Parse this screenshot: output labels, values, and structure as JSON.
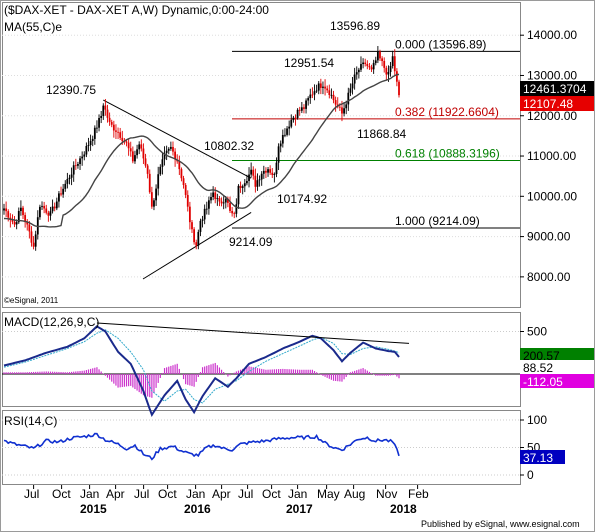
{
  "chart_data": [
    {
      "type": "candlestick",
      "title": "($DAX-XET - DAX-XET A,W) Dynamic,0:00-24:00",
      "subtitle": "MA(55,C)e",
      "watermark": "©eSignal, 2011",
      "ylim": [
        7500,
        14700
      ],
      "yticks": [
        "8000.00",
        "9000.00",
        "10000.00",
        "11000.00",
        "12000.00",
        "13000.00",
        "14000.00"
      ],
      "price_tags": [
        {
          "label": "12461.3704",
          "value": 12461,
          "color": "#000000",
          "text_color": "#ffffff"
        },
        {
          "label": "12107.48",
          "value": 12107,
          "color": "#e60000",
          "text_color": "#ffffff"
        }
      ],
      "fibonacci": [
        {
          "label": "0.000 (13596.89)",
          "value": 13596.89,
          "color": "#000000"
        },
        {
          "label": "0.382 (11922.6604)",
          "value": 11922.66,
          "color": "#c00000"
        },
        {
          "label": "0.618 (10888.3196)",
          "value": 10888.32,
          "color": "#008000"
        },
        {
          "label": "1.000 (9214.09)",
          "value": 9214.09,
          "color": "#000000"
        }
      ],
      "annotations": [
        {
          "text": "12390.75",
          "value": 12390.75
        },
        {
          "text": "10802.32",
          "value": 10802.32
        },
        {
          "text": "10174.92",
          "value": 10174.92
        },
        {
          "text": "9214.09",
          "value": 9214.09
        },
        {
          "text": "12951.54",
          "value": 12951.54
        },
        {
          "text": "13596.89",
          "value": 13596.89
        },
        {
          "text": "11868.84",
          "value": 11868.84
        }
      ],
      "series": [
        {
          "key": "close",
          "approx": [
            [
              0,
              9700
            ],
            [
              5,
              9300
            ],
            [
              8,
              9700
            ],
            [
              12,
              9100
            ],
            [
              14,
              8750
            ],
            [
              17,
              9800
            ],
            [
              22,
              9550
            ],
            [
              27,
              10100
            ],
            [
              32,
              10600
            ],
            [
              38,
              11100
            ],
            [
              42,
              11500
            ],
            [
              46,
              12000
            ],
            [
              47,
              12300
            ],
            [
              50,
              11800
            ],
            [
              54,
              11600
            ],
            [
              58,
              11300
            ],
            [
              61,
              10900
            ],
            [
              64,
              11300
            ],
            [
              68,
              10600
            ],
            [
              70,
              9700
            ],
            [
              73,
              10500
            ],
            [
              76,
              11000
            ],
            [
              79,
              11200
            ],
            [
              82,
              10900
            ],
            [
              85,
              10300
            ],
            [
              87,
              9700
            ],
            [
              89,
              9100
            ],
            [
              91,
              8800
            ],
            [
              93,
              9400
            ],
            [
              96,
              9700
            ],
            [
              99,
              10100
            ],
            [
              102,
              9800
            ],
            [
              105,
              10000
            ],
            [
              107,
              9600
            ],
            [
              109,
              9500
            ],
            [
              111,
              10200
            ],
            [
              114,
              10400
            ],
            [
              117,
              10600
            ],
            [
              119,
              10300
            ],
            [
              122,
              10600
            ],
            [
              125,
              10700
            ],
            [
              128,
              10500
            ],
            [
              130,
              11300
            ],
            [
              133,
              11600
            ],
            [
              136,
              11900
            ],
            [
              139,
              12100
            ],
            [
              142,
              12200
            ],
            [
              145,
              12500
            ],
            [
              148,
              12700
            ],
            [
              151,
              12800
            ],
            [
              154,
              12600
            ],
            [
              157,
              12300
            ],
            [
              160,
              12050
            ],
            [
              163,
              12500
            ],
            [
              166,
              12950
            ],
            [
              168,
              13150
            ],
            [
              171,
              13300
            ],
            [
              174,
              13100
            ],
            [
              177,
              13500
            ],
            [
              180,
              13200
            ],
            [
              182,
              13000
            ],
            [
              184,
              13450
            ],
            [
              186,
              12800
            ],
            [
              187,
              12461
            ]
          ]
        }
      ]
    },
    {
      "type": "line",
      "title": "MACD(12,26,9,C)",
      "yticks": [
        "0",
        "500"
      ],
      "value_tags": [
        {
          "label": "200.57",
          "color": "#008000",
          "text_color": "#000000"
        },
        {
          "label": "88.52",
          "color": "#ffffff",
          "text_color": "#000000"
        },
        {
          "label": "-112.05",
          "color": "#e000e0",
          "text_color": "#ffffff"
        }
      ],
      "series": [
        {
          "key": "macd",
          "approx": [
            [
              0,
              100
            ],
            [
              10,
              160
            ],
            [
              20,
              250
            ],
            [
              30,
              320
            ],
            [
              38,
              420
            ],
            [
              44,
              560
            ],
            [
              48,
              500
            ],
            [
              54,
              260
            ],
            [
              60,
              120
            ],
            [
              66,
              -200
            ],
            [
              70,
              -480
            ],
            [
              76,
              -250
            ],
            [
              82,
              -80
            ],
            [
              86,
              -300
            ],
            [
              90,
              -450
            ],
            [
              94,
              -260
            ],
            [
              100,
              -50
            ],
            [
              106,
              -150
            ],
            [
              110,
              -50
            ],
            [
              116,
              120
            ],
            [
              124,
              200
            ],
            [
              132,
              300
            ],
            [
              140,
              380
            ],
            [
              146,
              450
            ],
            [
              150,
              420
            ],
            [
              156,
              280
            ],
            [
              160,
              150
            ],
            [
              164,
              250
            ],
            [
              170,
              370
            ],
            [
              176,
              300
            ],
            [
              182,
              270
            ],
            [
              185,
              260
            ],
            [
              187,
              200
            ]
          ]
        },
        {
          "key": "signal",
          "approx": [
            [
              0,
              80
            ],
            [
              10,
              140
            ],
            [
              20,
              220
            ],
            [
              30,
              300
            ],
            [
              38,
              380
            ],
            [
              44,
              480
            ],
            [
              48,
              520
            ],
            [
              54,
              420
            ],
            [
              60,
              260
            ],
            [
              66,
              50
            ],
            [
              70,
              -200
            ],
            [
              76,
              -320
            ],
            [
              82,
              -200
            ],
            [
              86,
              -180
            ],
            [
              90,
              -300
            ],
            [
              94,
              -340
            ],
            [
              100,
              -180
            ],
            [
              106,
              -120
            ],
            [
              110,
              -80
            ],
            [
              116,
              30
            ],
            [
              124,
              150
            ],
            [
              132,
              240
            ],
            [
              140,
              330
            ],
            [
              146,
              400
            ],
            [
              150,
              430
            ],
            [
              156,
              360
            ],
            [
              160,
              240
            ],
            [
              164,
              230
            ],
            [
              170,
              300
            ],
            [
              176,
              320
            ],
            [
              182,
              290
            ],
            [
              185,
              270
            ],
            [
              187,
              250
            ]
          ]
        }
      ]
    },
    {
      "type": "line",
      "title": "RSI(14,C)",
      "yticks": [
        "0",
        "50",
        "100"
      ],
      "value_tag": {
        "label": "37.13",
        "color": "#0000c0",
        "text_color": "#ffffff"
      },
      "series": [
        {
          "key": "rsi",
          "approx": [
            [
              0,
              62
            ],
            [
              6,
              55
            ],
            [
              10,
              52
            ],
            [
              14,
              48
            ],
            [
              20,
              62
            ],
            [
              26,
              60
            ],
            [
              32,
              67
            ],
            [
              38,
              70
            ],
            [
              44,
              74
            ],
            [
              48,
              64
            ],
            [
              54,
              56
            ],
            [
              58,
              48
            ],
            [
              62,
              54
            ],
            [
              66,
              38
            ],
            [
              70,
              30
            ],
            [
              74,
              48
            ],
            [
              80,
              52
            ],
            [
              84,
              44
            ],
            [
              88,
              38
            ],
            [
              92,
              36
            ],
            [
              96,
              50
            ],
            [
              100,
              54
            ],
            [
              104,
              48
            ],
            [
              108,
              46
            ],
            [
              112,
              56
            ],
            [
              118,
              60
            ],
            [
              124,
              62
            ],
            [
              130,
              66
            ],
            [
              136,
              68
            ],
            [
              142,
              68
            ],
            [
              148,
              70
            ],
            [
              152,
              58
            ],
            [
              156,
              50
            ],
            [
              160,
              46
            ],
            [
              164,
              56
            ],
            [
              168,
              66
            ],
            [
              172,
              68
            ],
            [
              176,
              62
            ],
            [
              180,
              64
            ],
            [
              184,
              60
            ],
            [
              186,
              45
            ],
            [
              187,
              37
            ]
          ]
        }
      ]
    }
  ],
  "x_axis": {
    "month_labels": [
      "Jul",
      "Oct",
      "Jan",
      "Apr",
      "Jul",
      "Oct",
      "Jan",
      "Apr",
      "Jul",
      "Oct",
      "Jan",
      "May",
      "Aug",
      "Nov",
      "Feb"
    ],
    "year_labels": [
      "2015",
      "2016",
      "2017",
      "2018"
    ]
  },
  "footer": "Published by eSignal, www.esignal.com"
}
